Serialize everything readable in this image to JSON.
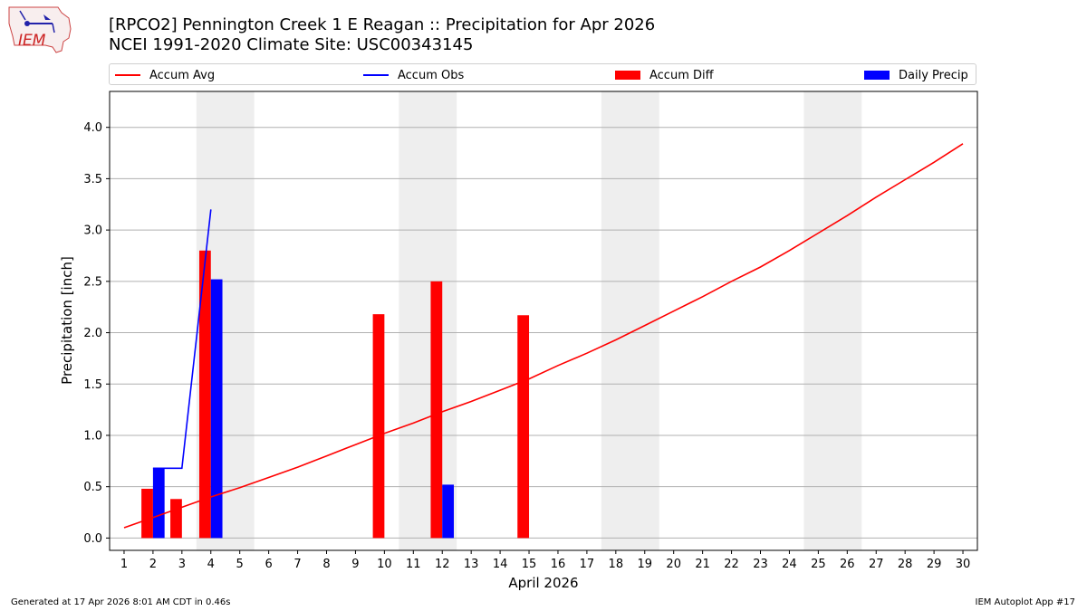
{
  "title_line1": "[RPCO2] Pennington Creek 1 E Reagan :: Precipitation for Apr 2026",
  "title_line2": "NCEI 1991-2020 Climate Site: USC00343145",
  "logo_text": "IEM",
  "legend": [
    {
      "label": "Accum Avg",
      "kind": "line",
      "color": "#ff0000"
    },
    {
      "label": "Accum Obs",
      "kind": "line",
      "color": "#0000ff"
    },
    {
      "label": "Accum Diff",
      "kind": "box",
      "color": "#ff0000"
    },
    {
      "label": "Daily Precip",
      "kind": "box",
      "color": "#0000ff"
    }
  ],
  "footer_left": "Generated at 17 Apr 2026 8:01 AM CDT in 0.46s",
  "footer_right": "IEM Autoplot App #17",
  "chart_data": {
    "type": "bar",
    "xlabel": "April 2026",
    "ylabel": "Precipitation [inch]",
    "xlim": [
      0.5,
      30.5
    ],
    "ylim": [
      -0.12,
      4.35
    ],
    "x_ticks": [
      1,
      2,
      3,
      4,
      5,
      6,
      7,
      8,
      9,
      10,
      11,
      12,
      13,
      14,
      15,
      16,
      17,
      18,
      19,
      20,
      21,
      22,
      23,
      24,
      25,
      26,
      27,
      28,
      29,
      30
    ],
    "y_ticks": [
      "0.0",
      "0.5",
      "1.0",
      "1.5",
      "2.0",
      "2.5",
      "3.0",
      "3.5",
      "4.0"
    ],
    "grid": "horizontal",
    "weekend_bands": [
      [
        3.5,
        5.5
      ],
      [
        10.5,
        12.5
      ],
      [
        17.5,
        19.5
      ],
      [
        24.5,
        26.5
      ]
    ],
    "accum_avg": {
      "name": "Accum Avg",
      "color": "#ff0000",
      "x": [
        1,
        2,
        3,
        4,
        5,
        6,
        7,
        8,
        9,
        10,
        11,
        12,
        13,
        14,
        15,
        16,
        17,
        18,
        19,
        20,
        21,
        22,
        23,
        24,
        25,
        26,
        27,
        28,
        29,
        30
      ],
      "y": [
        0.1,
        0.2,
        0.3,
        0.4,
        0.49,
        0.59,
        0.69,
        0.8,
        0.91,
        1.02,
        1.12,
        1.23,
        1.33,
        1.44,
        1.55,
        1.68,
        1.8,
        1.93,
        2.07,
        2.21,
        2.35,
        2.5,
        2.64,
        2.8,
        2.97,
        3.14,
        3.32,
        3.49,
        3.66,
        3.84
      ]
    },
    "accum_obs": {
      "name": "Accum Obs",
      "color": "#0000ff",
      "x": [
        2,
        3,
        4
      ],
      "y": [
        0.68,
        0.68,
        3.2
      ]
    },
    "accum_diff": {
      "name": "Accum Diff",
      "color": "#ff0000",
      "x": [
        2,
        3,
        4,
        10,
        12,
        15
      ],
      "y": [
        0.48,
        0.38,
        2.8,
        2.18,
        2.5,
        2.17
      ]
    },
    "daily_precip": {
      "name": "Daily Precip",
      "color": "#0000ff",
      "x": [
        2,
        4,
        12
      ],
      "y": [
        0.68,
        2.52,
        0.52
      ]
    }
  }
}
